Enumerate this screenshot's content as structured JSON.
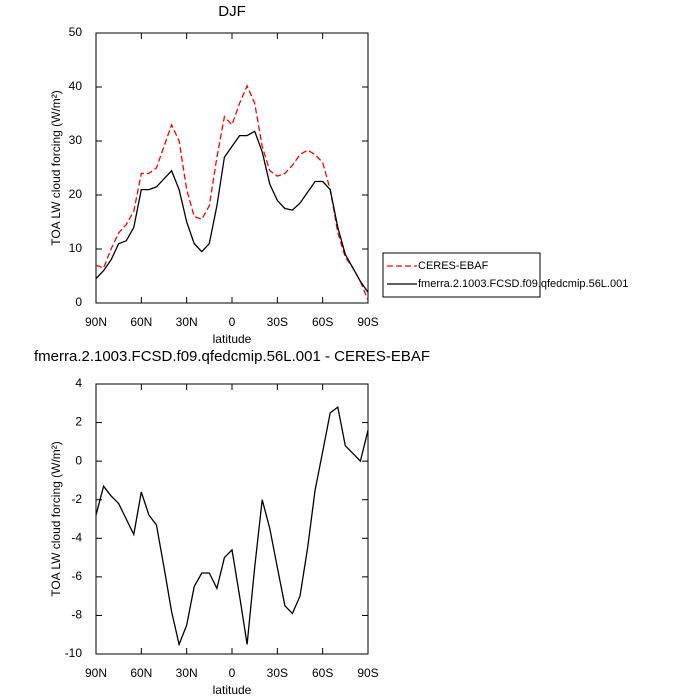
{
  "chart_data": [
    {
      "type": "line",
      "title": "DJF",
      "xlabel": "latitude",
      "ylabel": "TOA LW cloud forcing (W/m²)",
      "x": [
        90,
        85,
        80,
        75,
        70,
        65,
        60,
        55,
        50,
        45,
        40,
        35,
        30,
        25,
        20,
        15,
        10,
        5,
        0,
        -5,
        -10,
        -15,
        -20,
        -25,
        -30,
        -35,
        -40,
        -45,
        -50,
        -55,
        -60,
        -65,
        -70,
        -75,
        -80,
        -85,
        -90
      ],
      "series": [
        {
          "name": "CERES-EBAF",
          "color": "#ff0000",
          "style": "dashed",
          "values": [
            7,
            6.5,
            10,
            13,
            14.5,
            17,
            24,
            24,
            25,
            29,
            33,
            30,
            21,
            16,
            15.5,
            18,
            27,
            34.5,
            33,
            37,
            40.2,
            37,
            29,
            24.5,
            23.5,
            24,
            25.5,
            27.5,
            28.3,
            27.5,
            26,
            21,
            13,
            8.5,
            6.5,
            4,
            0.5
          ]
        },
        {
          "name": "fmerra.2.1003.FCSD.f09.qfedcmip.56L.001",
          "color": "#000000",
          "style": "solid",
          "values": [
            4.5,
            6,
            8,
            11,
            11.5,
            14,
            21,
            21,
            21.5,
            23,
            24.5,
            21,
            15,
            11,
            9.5,
            11,
            18,
            27,
            29,
            31,
            31,
            31.8,
            28,
            22,
            19,
            17.5,
            17.2,
            18.5,
            20.5,
            22.5,
            22.5,
            21,
            14,
            9,
            6.5,
            4,
            2
          ]
        }
      ],
      "xlim": [
        90,
        -90
      ],
      "xticks": [
        {
          "value": 90,
          "label": "90N"
        },
        {
          "value": 60,
          "label": "60N"
        },
        {
          "value": 30,
          "label": "30N"
        },
        0,
        {
          "value": -30,
          "label": "30S"
        },
        {
          "value": -60,
          "label": "60S"
        },
        {
          "value": -90,
          "label": "90S"
        }
      ],
      "ylim": [
        0,
        50
      ],
      "yticks": [
        0,
        10,
        20,
        30,
        40,
        50
      ],
      "legend": "right"
    },
    {
      "type": "line",
      "title": "fmerra.2.1003.FCSD.f09.qfedcmip.56L.001 - CERES-EBAF",
      "xlabel": "latitude",
      "ylabel": "TOA LW cloud forcing (W/m²)",
      "x": [
        90,
        85,
        80,
        75,
        70,
        65,
        60,
        55,
        50,
        45,
        40,
        35,
        30,
        25,
        20,
        15,
        10,
        5,
        0,
        -5,
        -10,
        -15,
        -20,
        -25,
        -30,
        -35,
        -40,
        -45,
        -50,
        -55,
        -60,
        -65,
        -70,
        -75,
        -80,
        -85,
        -90
      ],
      "values": [
        -2.8,
        -1.3,
        -1.8,
        -2.2,
        -3,
        -3.8,
        -1.6,
        -2.8,
        -3.3,
        -5.5,
        -7.8,
        -9.5,
        -8.5,
        -6.5,
        -5.8,
        -5.8,
        -6.6,
        -5,
        -4.6,
        -7,
        -9.5,
        -5.5,
        -2,
        -3.5,
        -5.5,
        -7.5,
        -7.9,
        -7,
        -4.5,
        -1.5,
        0.5,
        2.5,
        2.8,
        0.8,
        0.4,
        0,
        1.6
      ],
      "color": "#000000",
      "xlim": [
        90,
        -90
      ],
      "xticks": [
        {
          "value": 90,
          "label": "90N"
        },
        {
          "value": 60,
          "label": "60N"
        },
        {
          "value": 30,
          "label": "30N"
        },
        0,
        {
          "value": -30,
          "label": "30S"
        },
        {
          "value": -60,
          "label": "60S"
        },
        {
          "value": -90,
          "label": "90S"
        }
      ],
      "ylim": [
        -10,
        4
      ],
      "yticks": [
        -10,
        -8,
        -6,
        -4,
        -2,
        0,
        2,
        4
      ]
    }
  ]
}
